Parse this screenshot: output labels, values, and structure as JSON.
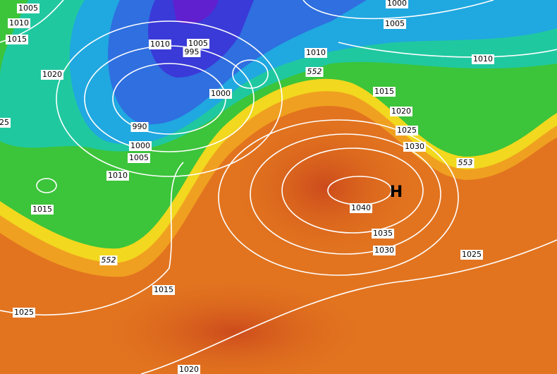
{
  "isobar_labels": [
    "1005",
    "1010",
    "1015",
    "1020",
    "25",
    "1015",
    "1010",
    "1005",
    "1000",
    "990",
    "1010",
    "1005",
    "995",
    "1000",
    "1010",
    "1000",
    "1005",
    "1010",
    "1015",
    "1020",
    "1025",
    "1030",
    "1040",
    "1035",
    "1030",
    "1025",
    "1015",
    "1025",
    "1020"
  ],
  "height_labels": [
    "552",
    "553",
    "552"
  ],
  "pressure_center": "H"
}
